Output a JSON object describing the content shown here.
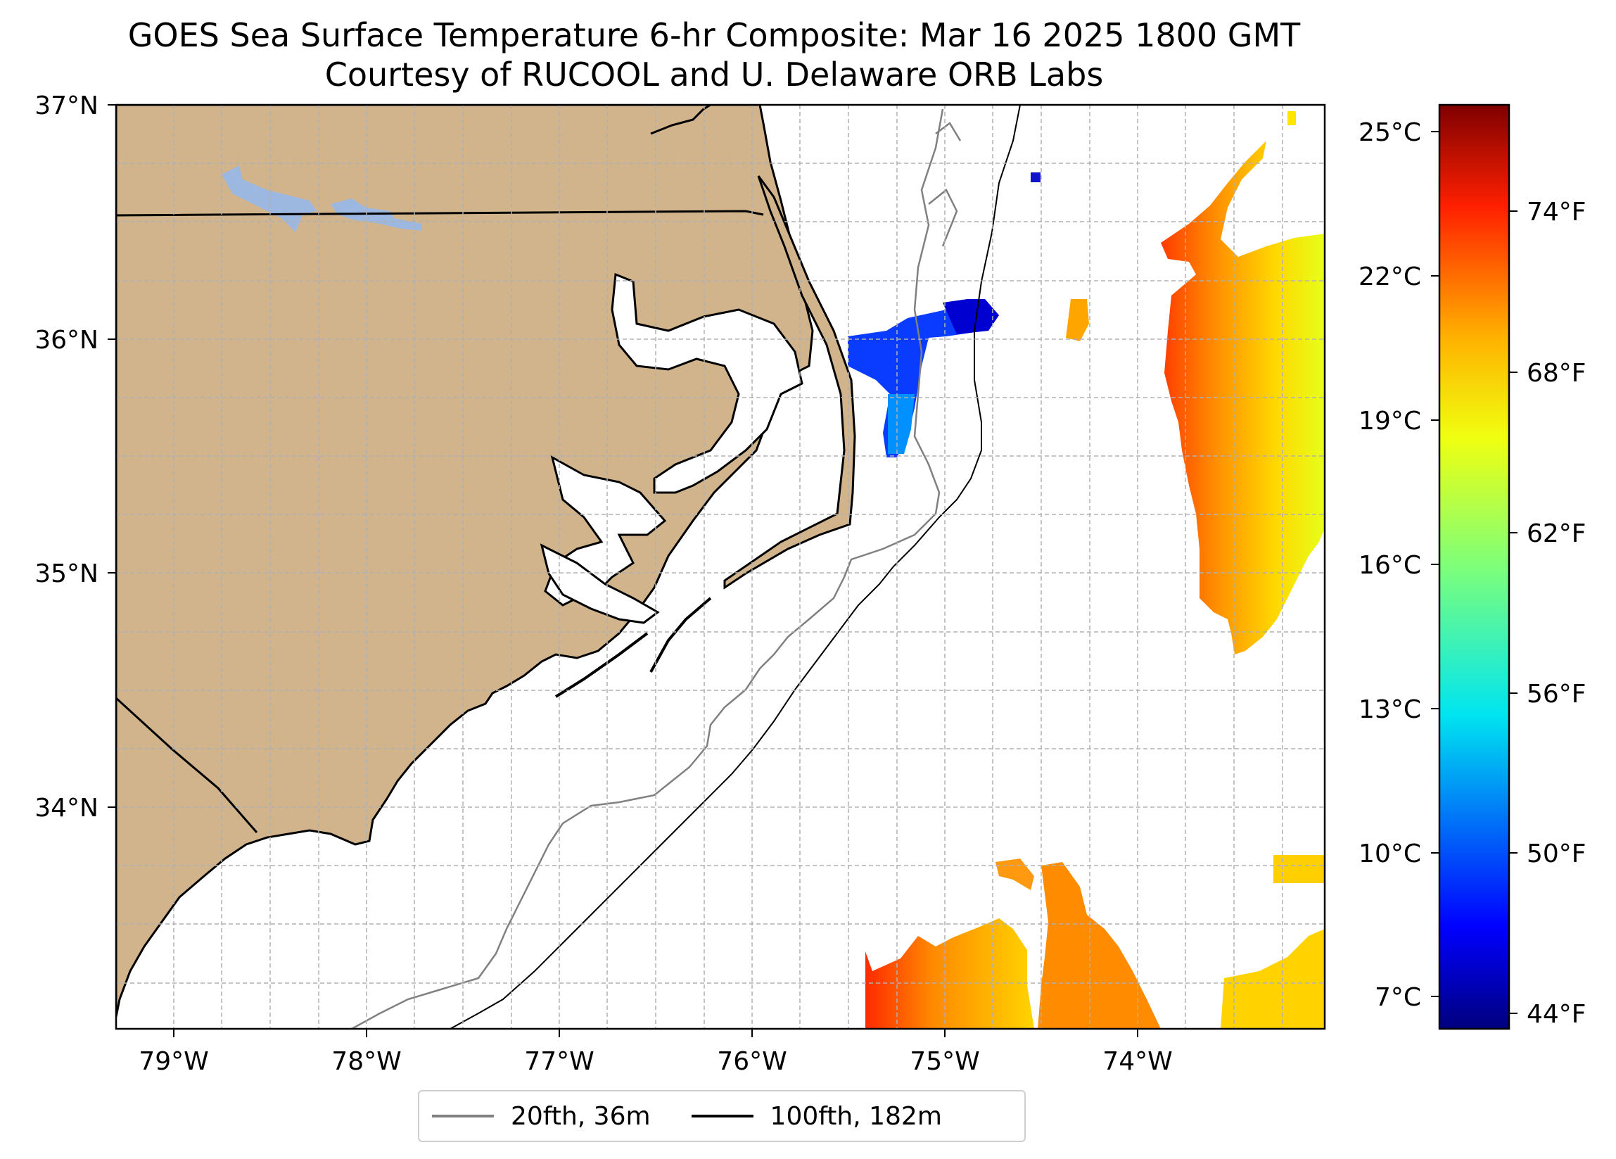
{
  "title": "GOES Sea Surface Temperature 6-hr Composite: Mar 16 2025 1800 GMT",
  "subtitle": "Courtesy of RUCOOL and U. Delaware ORB Labs",
  "map": {
    "lon_labels": [
      "79°W",
      "78°W",
      "77°W",
      "76°W",
      "75°W",
      "74°W"
    ],
    "lat_labels": [
      "37°N",
      "36°N",
      "35°N",
      "34°N"
    ],
    "colors": {
      "land": "#d2b48c",
      "lake": "#9db8e0",
      "grid": "#b0b0b0"
    }
  },
  "colorbar": {
    "celsius_labels": [
      "25°C",
      "22°C",
      "19°C",
      "16°C",
      "13°C",
      "10°C",
      "7°C"
    ],
    "fahrenheit_labels": [
      "74°F",
      "68°F",
      "62°F",
      "56°F",
      "50°F",
      "44°F"
    ],
    "colormap": "jet"
  },
  "legend": {
    "items": [
      {
        "label": "20fth, 36m",
        "color": "#808080"
      },
      {
        "label": "100fth, 182m",
        "color": "#000000"
      }
    ]
  }
}
